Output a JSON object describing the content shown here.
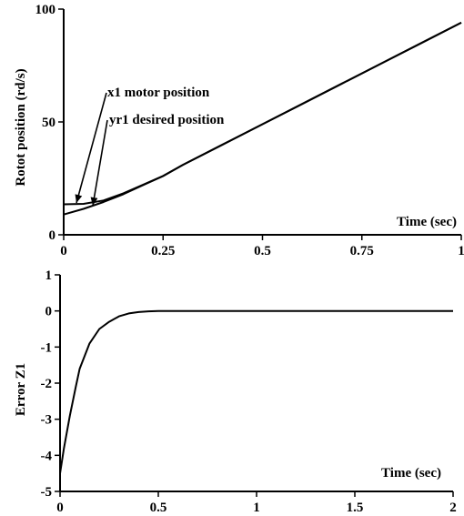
{
  "chart_data": [
    {
      "type": "line",
      "title": "",
      "xlabel": "Time (sec)",
      "ylabel": "Rotot position (rd/s)",
      "xlim": [
        0,
        1
      ],
      "ylim": [
        0,
        100
      ],
      "x_ticks": [
        "0",
        "0.25",
        "0.5",
        "0.75",
        "1"
      ],
      "y_ticks": [
        "0",
        "50",
        "100"
      ],
      "grid": false,
      "series": [
        {
          "name": "x1 motor position",
          "x": [
            0,
            0.05,
            0.1,
            0.15,
            0.2,
            0.25,
            0.3,
            0.4,
            0.5,
            0.6,
            0.7,
            0.8,
            0.9,
            1.0
          ],
          "y": [
            9,
            11.5,
            14.5,
            18,
            22,
            26,
            31,
            40,
            49,
            58,
            67,
            76,
            85,
            94
          ]
        },
        {
          "name": "yr1 desired position",
          "x": [
            0,
            0.05,
            0.1,
            0.15,
            0.2,
            0.25,
            0.3,
            0.4,
            0.5,
            0.6,
            0.7,
            0.8,
            0.9,
            1.0
          ],
          "y": [
            13.5,
            13.7,
            15.2,
            18.4,
            22.2,
            26.1,
            31,
            40,
            49,
            58,
            67,
            76,
            85,
            94
          ]
        }
      ],
      "annotations": [
        {
          "text": "x1 motor position",
          "points_to_series": "x1 motor position",
          "target_x": 0.03,
          "target_y": 14
        },
        {
          "text": "yr1 desired position",
          "points_to_series": "yr1 desired position",
          "target_x": 0.07,
          "target_y": 13
        }
      ]
    },
    {
      "type": "line",
      "title": "",
      "xlabel": "Time (sec)",
      "ylabel": "Error Z1",
      "xlim": [
        0,
        2
      ],
      "ylim": [
        -5,
        1
      ],
      "x_ticks": [
        "0",
        "0.5",
        "1",
        "1.5",
        "2"
      ],
      "y_ticks": [
        "-5",
        "-4",
        "-3",
        "-2",
        "-1",
        "0",
        "1"
      ],
      "grid": false,
      "series": [
        {
          "name": "",
          "x": [
            0,
            0.02,
            0.05,
            0.08,
            0.1,
            0.15,
            0.2,
            0.25,
            0.3,
            0.35,
            0.4,
            0.45,
            0.5,
            0.6,
            0.8,
            1.0,
            1.5,
            2.0
          ],
          "y": [
            -4.5,
            -3.8,
            -2.9,
            -2.1,
            -1.6,
            -0.9,
            -0.5,
            -0.3,
            -0.15,
            -0.07,
            -0.03,
            -0.01,
            0,
            0,
            0,
            0,
            0,
            0
          ]
        }
      ]
    }
  ]
}
